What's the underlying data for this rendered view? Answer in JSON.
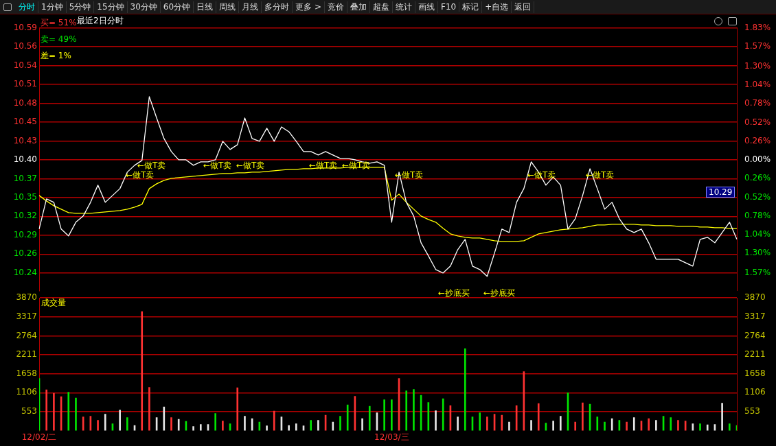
{
  "chart_data": [
    {
      "type": "other",
      "annotations": [
        "分时",
        "1分钟",
        "5分钟",
        "15分钟",
        "30分钟",
        "60分钟",
        "日线",
        "周线",
        "月线",
        "多分时",
        "更多 >",
        "竞价",
        "叠加",
        "超盘",
        "统计",
        "画线",
        "F10",
        "标记",
        "+自选",
        "返回"
      ]
    },
    {
      "type": "line",
      "title": "最近2日分时",
      "categories": [
        null,
        null,
        null,
        null,
        null,
        null,
        null,
        null,
        null,
        null,
        null,
        null,
        null,
        null,
        null,
        null,
        null,
        null,
        null,
        null,
        null,
        null,
        null,
        null,
        null,
        null,
        null,
        null,
        null,
        null,
        null,
        null,
        null,
        null,
        null,
        null,
        null,
        null,
        null,
        null,
        null,
        null,
        null,
        null,
        null,
        null,
        null,
        null,
        null,
        null,
        null,
        null,
        null,
        null,
        null,
        null,
        null,
        null,
        null,
        null,
        null,
        null,
        null,
        null,
        null,
        null,
        null,
        null,
        null,
        null,
        null,
        null,
        null,
        null,
        null,
        null,
        null,
        null,
        null,
        null,
        null,
        null,
        null,
        null,
        null,
        null,
        null,
        null,
        null,
        null,
        null,
        null,
        null,
        null,
        null,
        null
      ],
      "ylim": [
        10.209,
        10.593
      ],
      "yticks": [
        {
          "value": 10.5925,
          "label": "10.59"
        },
        {
          "value": 10.565,
          "label": "10.56"
        },
        {
          "value": 10.5375,
          "label": "10.54"
        },
        {
          "value": 10.51,
          "label": "10.51"
        },
        {
          "value": 10.4825,
          "label": "10.48"
        },
        {
          "value": 10.455,
          "label": "10.45"
        },
        {
          "value": 10.4275,
          "label": "10.43"
        },
        {
          "value": 10.4,
          "label": "10.40"
        },
        {
          "value": 10.3725,
          "label": "10.37"
        },
        {
          "value": 10.345,
          "label": "10.35"
        },
        {
          "value": 10.3175,
          "label": "10.32"
        },
        {
          "value": 10.29,
          "label": "10.29"
        },
        {
          "value": 10.2625,
          "label": "10.26"
        },
        {
          "value": 10.235,
          "label": "10.24"
        }
      ],
      "y2lim": [
        -1.82,
        1.84
      ],
      "y2ticks": [
        {
          "value": 1.83,
          "label": "1.83%"
        },
        {
          "value": 1.57,
          "label": "1.57%"
        },
        {
          "value": 1.3,
          "label": "1.30%"
        },
        {
          "value": 1.04,
          "label": "1.04%"
        },
        {
          "value": 0.78,
          "label": "0.78%"
        },
        {
          "value": 0.52,
          "label": "0.52%"
        },
        {
          "value": 0.26,
          "label": "0.26%"
        },
        {
          "value": 0,
          "label": "0.00%"
        },
        {
          "value": -0.26,
          "label": "0.26%"
        },
        {
          "value": -0.52,
          "label": "0.52%"
        },
        {
          "value": -0.78,
          "label": "0.78%"
        },
        {
          "value": -1.04,
          "label": "1.04%"
        },
        {
          "value": -1.3,
          "label": "1.30%"
        },
        {
          "value": -1.57,
          "label": "1.57%"
        }
      ],
      "tick_labels": "y",
      "grid": "y",
      "series": [
        {
          "color": "#ffffff",
          "values": [
            10.299,
            10.343,
            10.338,
            10.299,
            10.289,
            10.309,
            10.318,
            10.338,
            10.363,
            10.338,
            10.348,
            10.358,
            10.382,
            10.392,
            10.399,
            10.492,
            10.461,
            10.431,
            10.412,
            10.4,
            10.4,
            10.392,
            10.397,
            10.397,
            10.4,
            10.427,
            10.415,
            10.422,
            10.461,
            10.431,
            10.427,
            10.446,
            10.427,
            10.448,
            10.441,
            10.427,
            10.412,
            10.412,
            10.407,
            10.412,
            10.407,
            10.402,
            10.402,
            10.4,
            10.397,
            10.395,
            10.397,
            10.392,
            10.309,
            10.382,
            10.338,
            10.318,
            10.279,
            10.26,
            10.24,
            10.235,
            10.245,
            10.269,
            10.284,
            10.245,
            10.24,
            10.23,
            10.264,
            10.299,
            10.294,
            10.338,
            10.358,
            10.397,
            10.382,
            10.363,
            10.375,
            10.363,
            10.299,
            10.314,
            10.348,
            10.387,
            10.358,
            10.328,
            10.338,
            10.314,
            10.299,
            10.294,
            10.299,
            10.279,
            10.255,
            10.255,
            10.255,
            10.255,
            10.25,
            10.245,
            10.284,
            10.287,
            10.279,
            10.294,
            10.309,
            10.284
          ]
        },
        {
          "color": "#ffff00",
          "values": [
            10.348,
            10.34,
            10.333,
            10.328,
            10.323,
            10.322,
            10.322,
            10.322,
            10.323,
            10.324,
            10.325,
            10.326,
            10.328,
            10.331,
            10.335,
            10.358,
            10.365,
            10.37,
            10.373,
            10.374,
            10.375,
            10.376,
            10.377,
            10.378,
            10.379,
            10.38,
            10.38,
            10.381,
            10.381,
            10.382,
            10.382,
            10.383,
            10.384,
            10.385,
            10.386,
            10.386,
            10.387,
            10.387,
            10.388,
            10.388,
            10.388,
            10.388,
            10.389,
            10.389,
            10.389,
            10.389,
            10.389,
            10.389,
            10.341,
            10.35,
            10.338,
            10.328,
            10.318,
            10.313,
            10.309,
            10.3,
            10.292,
            10.289,
            10.287,
            10.286,
            10.286,
            10.284,
            10.282,
            10.281,
            10.281,
            10.281,
            10.282,
            10.287,
            10.292,
            10.294,
            10.296,
            10.298,
            10.299,
            10.3,
            10.301,
            10.303,
            10.305,
            10.305,
            10.306,
            10.306,
            10.306,
            10.306,
            10.305,
            10.305,
            10.304,
            10.304,
            10.304,
            10.303,
            10.303,
            10.303,
            10.302,
            10.302,
            10.301,
            10.301,
            10.3,
            10.3
          ]
        }
      ],
      "annotations": [
        "买= 51%",
        "卖= 49%",
        "差= 1%",
        "←做T卖",
        "←做T卖",
        "←做T卖",
        "←做T卖",
        "←做T卖",
        "←做T卖",
        "←做T卖",
        "←做T卖",
        "←做T卖",
        "←抄底买",
        "←抄底买",
        "10.29"
      ]
    },
    {
      "type": "bar",
      "title": "成交量",
      "categories": [
        "12/02/二",
        null,
        null,
        null,
        null,
        null,
        null,
        null,
        null,
        null,
        null,
        null,
        null,
        null,
        null,
        null,
        null,
        null,
        null,
        null,
        null,
        null,
        null,
        null,
        null,
        null,
        null,
        null,
        null,
        null,
        null,
        null,
        null,
        null,
        null,
        null,
        null,
        null,
        null,
        null,
        null,
        null,
        null,
        null,
        null,
        null,
        null,
        null,
        "12/03/三",
        null,
        null,
        null,
        null,
        null,
        null,
        null,
        null,
        null,
        null,
        null,
        null,
        null,
        null,
        null,
        null,
        null,
        null,
        null,
        null,
        null,
        null,
        null,
        null,
        null,
        null,
        null,
        null,
        null,
        null,
        null,
        null,
        null,
        null,
        null,
        null,
        null,
        null,
        null,
        null,
        null,
        null,
        null,
        null,
        null,
        null,
        null
      ],
      "ylim": [
        0,
        3870
      ],
      "yticks": [
        553,
        1106,
        1658,
        2211,
        2764,
        3317,
        3870
      ],
      "y2lim": [
        0,
        3870
      ],
      "y2ticks": [
        553,
        1106,
        1658,
        2211,
        2764,
        3317,
        3870
      ],
      "grid": "y",
      "values": [
        1520,
        1190,
        1090,
        990,
        1120,
        950,
        400,
        420,
        300,
        480,
        200,
        600,
        380,
        150,
        3470,
        1260,
        380,
        690,
        380,
        330,
        270,
        120,
        180,
        180,
        500,
        280,
        200,
        1250,
        420,
        350,
        250,
        140,
        570,
        400,
        150,
        200,
        140,
        300,
        300,
        450,
        250,
        420,
        750,
        1000,
        350,
        710,
        520,
        900,
        900,
        1520,
        1160,
        1200,
        1030,
        820,
        580,
        930,
        730,
        400,
        2390,
        400,
        520,
        400,
        480,
        450,
        250,
        730,
        1720,
        300,
        790,
        220,
        280,
        420,
        1100,
        250,
        810,
        770,
        400,
        250,
        350,
        300,
        250,
        380,
        280,
        350,
        300,
        420,
        380,
        300,
        280,
        200,
        200,
        170,
        180,
        800,
        200,
        150
      ],
      "colors": [
        "#00e600",
        "#ff3232",
        "#ff3232",
        "#ff3232",
        "#00e600",
        "#00e600",
        "#ff3232",
        "#ff3232",
        "#ff3232",
        "#e6e6e6",
        "#00e600",
        "#e6e6e6",
        "#00e600",
        "#e6e6e6",
        "#ff3232",
        "#ff3232",
        "#e6e6e6",
        "#e6e6e6",
        "#ff3232",
        "#e6e6e6",
        "#00e600",
        "#e6e6e6",
        "#e6e6e6",
        "#e6e6e6",
        "#00e600",
        "#ff3232",
        "#00e600",
        "#ff3232",
        "#e6e6e6",
        "#e6e6e6",
        "#00e600",
        "#e6e6e6",
        "#ff3232",
        "#e6e6e6",
        "#e6e6e6",
        "#e6e6e6",
        "#e6e6e6",
        "#00e600",
        "#e6e6e6",
        "#ff3232",
        "#e6e6e6",
        "#00e600",
        "#00e600",
        "#ff3232",
        "#e6e6e6",
        "#00e600",
        "#e6e6e6",
        "#00e600",
        "#00e600",
        "#ff3232",
        "#00e600",
        "#00e600",
        "#00e600",
        "#00e600",
        "#e6e6e6",
        "#00e600",
        "#ff3232",
        "#e6e6e6",
        "#00e600",
        "#00e600",
        "#00e600",
        "#ff3232",
        "#ff3232",
        "#ff3232",
        "#e6e6e6",
        "#ff3232",
        "#ff3232",
        "#e6e6e6",
        "#ff3232",
        "#00e600",
        "#e6e6e6",
        "#e6e6e6",
        "#00e600",
        "#ff3232",
        "#ff3232",
        "#00e600",
        "#00e600",
        "#00e600",
        "#e6e6e6",
        "#00e600",
        "#ff3232",
        "#e6e6e6",
        "#ff3232",
        "#ff3232",
        "#e6e6e6",
        "#00e600",
        "#00e600",
        "#ff3232",
        "#ff3232",
        "#e6e6e6",
        "#00e600",
        "#e6e6e6",
        "#e6e6e6",
        "#e6e6e6",
        "#00e600",
        "#00e600"
      ]
    }
  ]
}
